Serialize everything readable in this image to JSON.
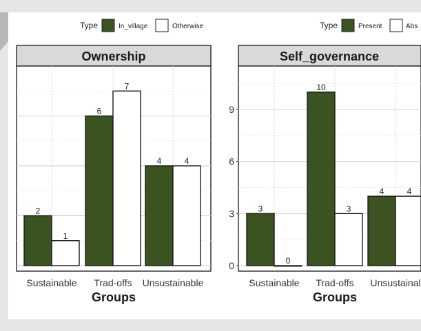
{
  "chart_data": [
    {
      "type": "bar",
      "title": "Ownership",
      "xlabel": "Groups",
      "ylabel": "",
      "legend_title": "Type",
      "legend_position": "top-right",
      "grid": true,
      "categories": [
        "Sustainable",
        "Trad-offs",
        "Unsustainable"
      ],
      "ylim": [
        0,
        8
      ],
      "y_ticks_shown": false,
      "series": [
        {
          "name": "In_village",
          "color": "#3b5320",
          "values": [
            2,
            6,
            4
          ]
        },
        {
          "name": "Otherwise",
          "color": "#ffffff",
          "values": [
            1,
            7,
            4
          ]
        }
      ]
    },
    {
      "type": "bar",
      "title": "Self_governance",
      "xlabel": "Groups",
      "ylabel": "",
      "legend_title": "Type",
      "legend_position": "top-right",
      "grid": true,
      "categories": [
        "Sustainable",
        "Trad-offs",
        "Unsustainable"
      ],
      "tick_labels": [
        "Sustainable",
        "Trad-offs",
        "Unsustainal"
      ],
      "ylim": [
        0,
        11.5
      ],
      "y_ticks": [
        0,
        3,
        6,
        9
      ],
      "series": [
        {
          "name": "Present",
          "legend_label": "Present",
          "color": "#3b5320",
          "values": [
            3,
            10,
            4
          ]
        },
        {
          "name": "Absent",
          "legend_label": "Abs",
          "color": "#ffffff",
          "values": [
            0,
            3,
            4
          ]
        }
      ]
    }
  ]
}
